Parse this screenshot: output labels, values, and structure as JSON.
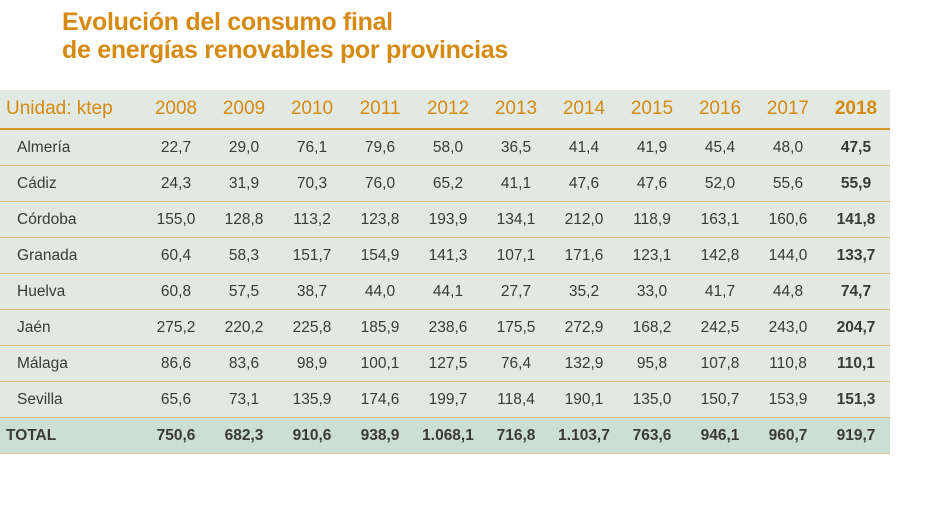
{
  "title": {
    "line1": "Evolución del consumo final",
    "line2": "de energías renovables por provincias"
  },
  "colors": {
    "accent": "#d68a12",
    "table_bg": "#e1e9e2",
    "total_bg": "#cddfd2"
  },
  "table": {
    "unit_label": "Unidad: ktep",
    "years": [
      "2008",
      "2009",
      "2010",
      "2011",
      "2012",
      "2013",
      "2014",
      "2015",
      "2016",
      "2017",
      "2018"
    ],
    "rows": [
      {
        "name": "Almería",
        "values": [
          "22,7",
          "29,0",
          "76,1",
          "79,6",
          "58,0",
          "36,5",
          "41,4",
          "41,9",
          "45,4",
          "48,0",
          "47,5"
        ]
      },
      {
        "name": "Cádiz",
        "values": [
          "24,3",
          "31,9",
          "70,3",
          "76,0",
          "65,2",
          "41,1",
          "47,6",
          "47,6",
          "52,0",
          "55,6",
          "55,9"
        ]
      },
      {
        "name": "Córdoba",
        "values": [
          "155,0",
          "128,8",
          "113,2",
          "123,8",
          "193,9",
          "134,1",
          "212,0",
          "118,9",
          "163,1",
          "160,6",
          "141,8"
        ]
      },
      {
        "name": "Granada",
        "values": [
          "60,4",
          "58,3",
          "151,7",
          "154,9",
          "141,3",
          "107,1",
          "171,6",
          "123,1",
          "142,8",
          "144,0",
          "133,7"
        ]
      },
      {
        "name": "Huelva",
        "values": [
          "60,8",
          "57,5",
          "38,7",
          "44,0",
          "44,1",
          "27,7",
          "35,2",
          "33,0",
          "41,7",
          "44,8",
          "74,7"
        ]
      },
      {
        "name": "Jaén",
        "values": [
          "275,2",
          "220,2",
          "225,8",
          "185,9",
          "238,6",
          "175,5",
          "272,9",
          "168,2",
          "242,5",
          "243,0",
          "204,7"
        ]
      },
      {
        "name": "Málaga",
        "values": [
          "86,6",
          "83,6",
          "98,9",
          "100,1",
          "127,5",
          "76,4",
          "132,9",
          "95,8",
          "107,8",
          "110,8",
          "110,1"
        ]
      },
      {
        "name": "Sevilla",
        "values": [
          "65,6",
          "73,1",
          "135,9",
          "174,6",
          "199,7",
          "118,4",
          "190,1",
          "135,0",
          "150,7",
          "153,9",
          "151,3"
        ]
      }
    ],
    "total": {
      "name": "TOTAL",
      "values": [
        "750,6",
        "682,3",
        "910,6",
        "938,9",
        "1.068,1",
        "716,8",
        "1.103,7",
        "763,6",
        "946,1",
        "960,7",
        "919,7"
      ]
    }
  }
}
